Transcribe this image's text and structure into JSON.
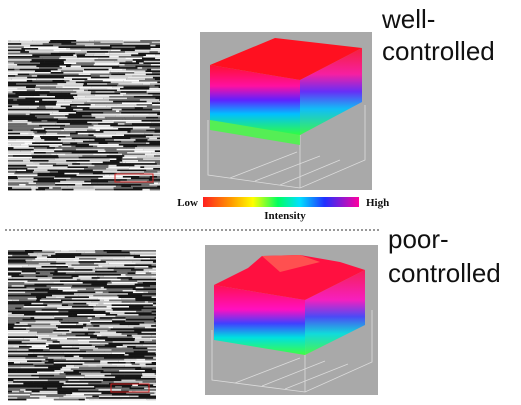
{
  "top_panel": {
    "label_line1": "well-",
    "label_line2": "controlled"
  },
  "colorbar": {
    "low": "Low",
    "high": "High",
    "title": "Intensity"
  },
  "bottom_panel": {
    "label_line1": "poor-",
    "label_line2": "controlled"
  }
}
